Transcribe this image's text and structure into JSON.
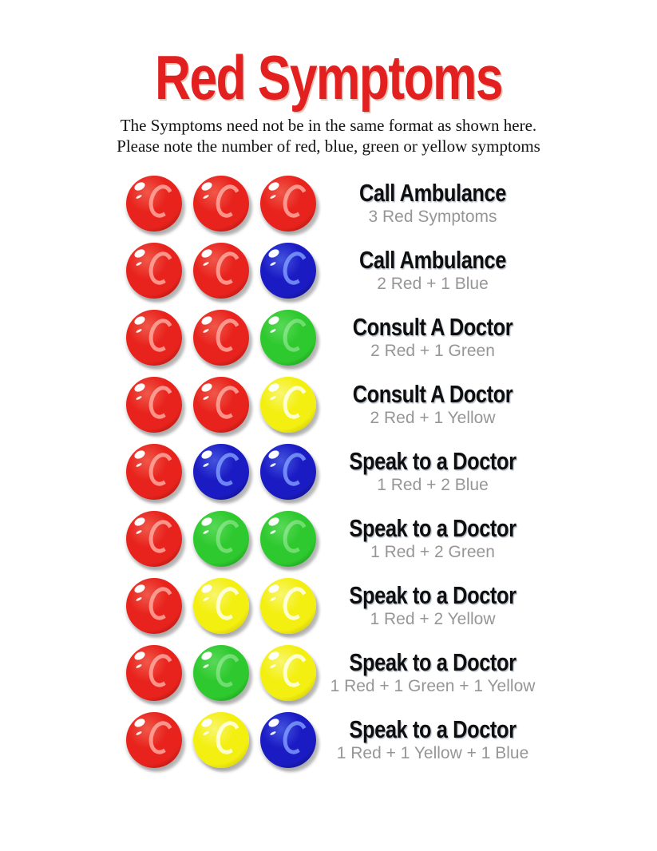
{
  "page": {
    "title": "Red Symptoms",
    "subtitle_line1": "The Symptoms need not be in the same format as shown here.",
    "subtitle_line2": "Please note the number of red, blue, green or yellow symptoms"
  },
  "colors": {
    "title_red": "#e2201f",
    "dot_red": "#e8231d",
    "dot_blue": "#1b1bc4",
    "dot_green": "#2ec92e",
    "dot_yellow": "#f3ef10",
    "action_text": "#0e0e0e",
    "combo_gray": "#969696"
  },
  "rows": [
    {
      "dots": [
        "red",
        "red",
        "red"
      ],
      "action": "Call Ambulance",
      "combo": "3 Red Symptoms"
    },
    {
      "dots": [
        "red",
        "red",
        "blue"
      ],
      "action": "Call Ambulance",
      "combo": "2 Red + 1 Blue"
    },
    {
      "dots": [
        "red",
        "red",
        "green"
      ],
      "action": "Consult A Doctor",
      "combo": "2 Red + 1 Green"
    },
    {
      "dots": [
        "red",
        "red",
        "yellow"
      ],
      "action": "Consult A Doctor",
      "combo": "2 Red + 1 Yellow"
    },
    {
      "dots": [
        "red",
        "blue",
        "blue"
      ],
      "action": "Speak to a Doctor",
      "combo": "1 Red + 2 Blue"
    },
    {
      "dots": [
        "red",
        "green",
        "green"
      ],
      "action": "Speak to a Doctor",
      "combo": "1 Red + 2 Green"
    },
    {
      "dots": [
        "red",
        "yellow",
        "yellow"
      ],
      "action": "Speak to a Doctor",
      "combo": "1 Red + 2 Yellow"
    },
    {
      "dots": [
        "red",
        "green",
        "yellow"
      ],
      "action": "Speak to a Doctor",
      "combo": "1 Red + 1 Green + 1 Yellow"
    },
    {
      "dots": [
        "red",
        "yellow",
        "blue"
      ],
      "action": "Speak to a Doctor",
      "combo": "1 Red + 1 Yellow + 1 Blue"
    }
  ]
}
